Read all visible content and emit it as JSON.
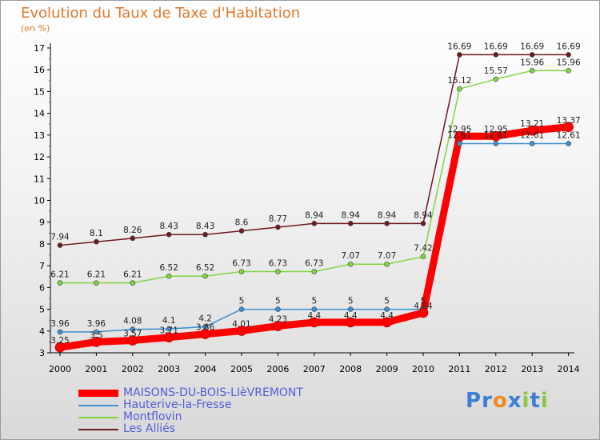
{
  "chart_data": {
    "type": "line",
    "title": "Evolution du Taux de Taxe d'Habitation",
    "ylabel": "(en %)",
    "xlabel": "",
    "x": [
      "2000",
      "2001",
      "2002",
      "2003",
      "2004",
      "2005",
      "2006",
      "2007",
      "2008",
      "2009",
      "2010",
      "2011",
      "2012",
      "2013",
      "2014"
    ],
    "ylim": [
      3,
      17
    ],
    "yticks": [
      "3",
      "4",
      "5",
      "6",
      "7",
      "8",
      "9",
      "10",
      "11",
      "12",
      "13",
      "14",
      "15",
      "16",
      "17"
    ],
    "grid": false,
    "legend": "bottom-left",
    "series": [
      {
        "name": "MAISONS-DU-BOIS-LIèVREMONT",
        "color": "#ff0000",
        "values": [
          3.25,
          3.5,
          3.57,
          3.71,
          3.86,
          4.01,
          4.23,
          4.4,
          4.4,
          4.4,
          4.84,
          12.95,
          12.95,
          13.21,
          13.37
        ],
        "labels": [
          "3.25",
          "3.5",
          "3.57",
          "3.71",
          "3.86",
          "4.01",
          "4.23",
          "4.4",
          "4.4",
          "4.4",
          "4.84",
          "12.95",
          "12.95",
          "13.21",
          "13.37"
        ]
      },
      {
        "name": "Hauterive-la-Fresse",
        "color": "#3d8fd0",
        "values": [
          3.96,
          3.96,
          4.08,
          4.1,
          4.2,
          5,
          5,
          5,
          5,
          5,
          5,
          12.61,
          12.61,
          12.61,
          12.61
        ],
        "labels": [
          "3.96",
          "3.96",
          "4.08",
          "4.1",
          "4.2",
          "5",
          "5",
          "5",
          "5",
          "5",
          "5",
          "12.61",
          "12.61",
          "12.61",
          "12.61"
        ]
      },
      {
        "name": "Montflovin",
        "color": "#7fd540",
        "values": [
          6.21,
          6.21,
          6.21,
          6.52,
          6.52,
          6.73,
          6.73,
          6.73,
          7.07,
          7.07,
          7.42,
          15.12,
          15.57,
          15.96,
          15.96
        ],
        "labels": [
          "6.21",
          "6.21",
          "6.21",
          "6.52",
          "6.52",
          "6.73",
          "6.73",
          "6.73",
          "7.07",
          "7.07",
          "7.42",
          "15.12",
          "15.57",
          "15.96",
          "15.96"
        ]
      },
      {
        "name": "Les Alliés",
        "color": "#6b1a1e",
        "values": [
          7.94,
          8.1,
          8.26,
          8.43,
          8.43,
          8.6,
          8.77,
          8.94,
          8.94,
          8.94,
          8.94,
          16.69,
          16.69,
          16.69,
          16.69
        ],
        "labels": [
          "7.94",
          "8.1",
          "8.26",
          "8.43",
          "8.43",
          "8.6",
          "8.77",
          "8.94",
          "8.94",
          "8.94",
          "8.94",
          "16.69",
          "16.69",
          "16.69",
          "16.69"
        ]
      }
    ]
  },
  "logo": {
    "letters": [
      "P",
      "r",
      "o",
      "x",
      "i",
      "t",
      "i"
    ],
    "colors": [
      "#3a7fd4",
      "#3a7fd4",
      "#f08c1e",
      "#3a7fd4",
      "#8cc63f",
      "#3a7fd4",
      "#8cc63f"
    ]
  }
}
